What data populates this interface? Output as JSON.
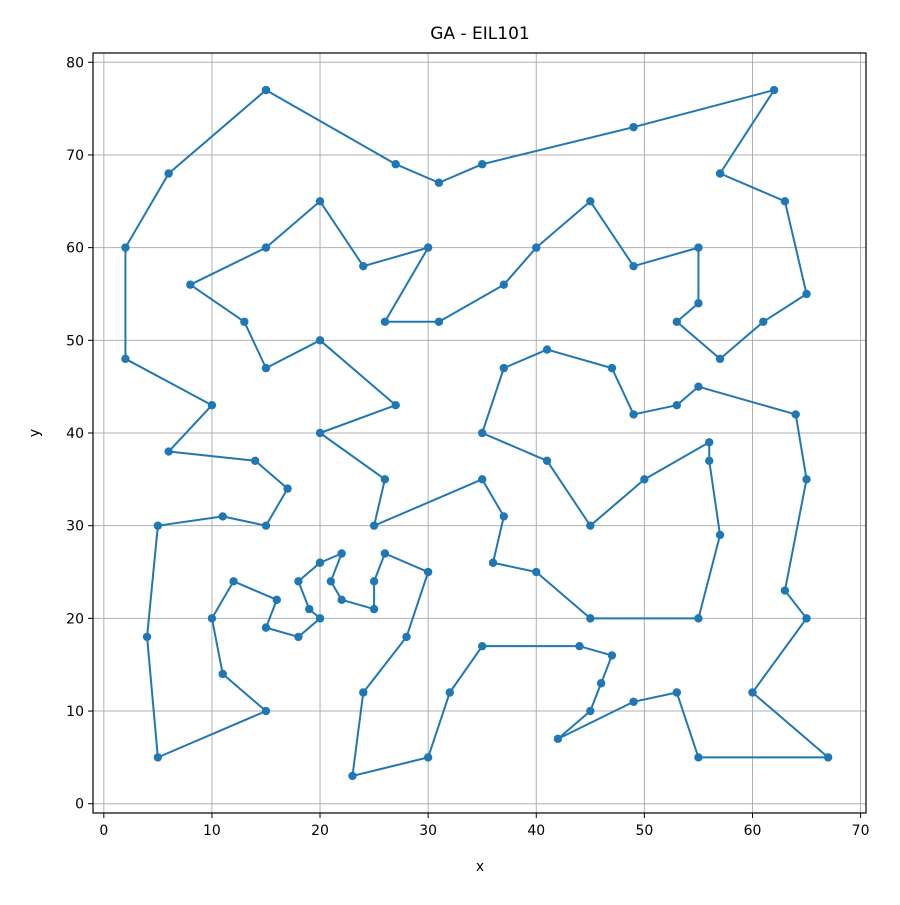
{
  "chart_data": {
    "type": "line",
    "title": "GA - EIL101",
    "xlabel": "x",
    "ylabel": "y",
    "xlim": [
      -1,
      70.5
    ],
    "ylim": [
      -1,
      81
    ],
    "xticks": [
      0,
      10,
      20,
      30,
      40,
      50,
      60,
      70
    ],
    "yticks": [
      0,
      10,
      20,
      30,
      40,
      50,
      60,
      70,
      80
    ],
    "grid": true,
    "series_color": "#1f77b4",
    "points": [
      [
        15,
        77
      ],
      [
        27,
        69
      ],
      [
        31,
        67
      ],
      [
        35,
        69
      ],
      [
        49,
        73
      ],
      [
        62,
        77
      ],
      [
        57,
        68
      ],
      [
        63,
        65
      ],
      [
        65,
        55
      ],
      [
        61,
        52
      ],
      [
        57,
        48
      ],
      [
        53,
        52
      ],
      [
        55,
        54
      ],
      [
        55,
        60
      ],
      [
        49,
        58
      ],
      [
        45,
        65
      ],
      [
        40,
        60
      ],
      [
        37,
        56
      ],
      [
        31,
        52
      ],
      [
        26,
        52
      ],
      [
        30,
        60
      ],
      [
        24,
        58
      ],
      [
        20,
        65
      ],
      [
        15,
        60
      ],
      [
        8,
        56
      ],
      [
        13,
        52
      ],
      [
        15,
        47
      ],
      [
        20,
        50
      ],
      [
        27,
        43
      ],
      [
        20,
        40
      ],
      [
        26,
        35
      ],
      [
        25,
        30
      ],
      [
        35,
        35
      ],
      [
        37,
        31
      ],
      [
        36,
        26
      ],
      [
        40,
        25
      ],
      [
        45,
        20
      ],
      [
        55,
        20
      ],
      [
        57,
        29
      ],
      [
        56,
        37
      ],
      [
        56,
        39
      ],
      [
        50,
        35
      ],
      [
        45,
        30
      ],
      [
        41,
        37
      ],
      [
        35,
        40
      ],
      [
        37,
        47
      ],
      [
        41,
        49
      ],
      [
        47,
        47
      ],
      [
        49,
        42
      ],
      [
        53,
        43
      ],
      [
        55,
        45
      ],
      [
        64,
        42
      ],
      [
        65,
        35
      ],
      [
        63,
        23
      ],
      [
        65,
        20
      ],
      [
        60,
        12
      ],
      [
        67,
        5
      ],
      [
        55,
        5
      ],
      [
        53,
        12
      ],
      [
        49,
        11
      ],
      [
        42,
        7
      ],
      [
        45,
        10
      ],
      [
        46,
        13
      ],
      [
        47,
        16
      ],
      [
        44,
        17
      ],
      [
        35,
        17
      ],
      [
        32,
        12
      ],
      [
        30,
        5
      ],
      [
        23,
        3
      ],
      [
        24,
        12
      ],
      [
        28,
        18
      ],
      [
        30,
        25
      ],
      [
        26,
        27
      ],
      [
        25,
        24
      ],
      [
        25,
        21
      ],
      [
        22,
        22
      ],
      [
        21,
        24
      ],
      [
        22,
        27
      ],
      [
        20,
        26
      ],
      [
        18,
        24
      ],
      [
        19,
        21
      ],
      [
        20,
        20
      ],
      [
        18,
        18
      ],
      [
        15,
        19
      ],
      [
        16,
        22
      ],
      [
        12,
        24
      ],
      [
        10,
        20
      ],
      [
        11,
        14
      ],
      [
        15,
        10
      ],
      [
        5,
        5
      ],
      [
        4,
        18
      ],
      [
        5,
        30
      ],
      [
        11,
        31
      ],
      [
        15,
        30
      ],
      [
        17,
        34
      ],
      [
        14,
        37
      ],
      [
        6,
        38
      ],
      [
        10,
        43
      ],
      [
        2,
        48
      ],
      [
        2,
        60
      ],
      [
        6,
        68
      ],
      [
        15,
        77
      ]
    ]
  }
}
